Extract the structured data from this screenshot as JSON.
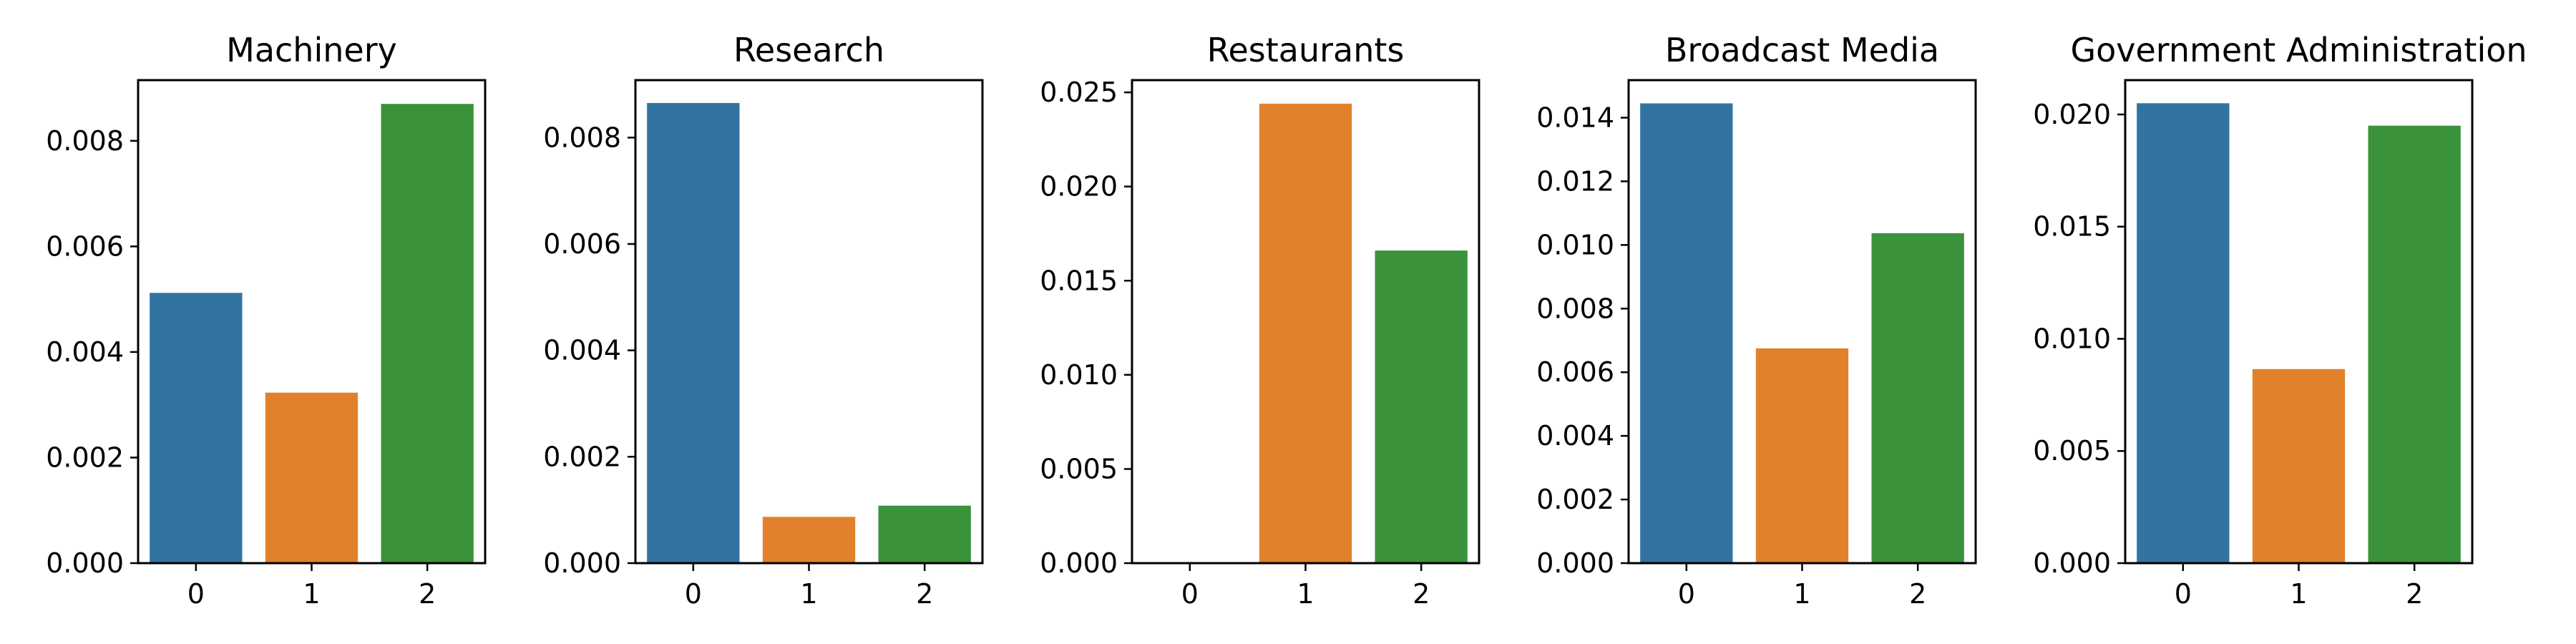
{
  "chart_data": [
    {
      "type": "bar",
      "title": "Machinery",
      "categories": [
        "0",
        "1",
        "2"
      ],
      "values": [
        0.00512,
        0.00323,
        0.0087
      ],
      "ylim": [
        0,
        0.00915
      ],
      "yticks": [
        "0.000",
        "0.002",
        "0.004",
        "0.006",
        "0.008"
      ],
      "ytick_values": [
        0,
        0.002,
        0.004,
        0.006,
        0.008
      ],
      "colors": [
        "#3274a1",
        "#e1812c",
        "#3a923a"
      ],
      "grid": false
    },
    {
      "type": "bar",
      "title": "Research",
      "categories": [
        "0",
        "1",
        "2"
      ],
      "values": [
        0.00865,
        0.00087,
        0.00108
      ],
      "ylim": [
        0,
        0.00908
      ],
      "yticks": [
        "0.000",
        "0.002",
        "0.004",
        "0.006",
        "0.008"
      ],
      "ytick_values": [
        0,
        0.002,
        0.004,
        0.006,
        0.008
      ],
      "colors": [
        "#3274a1",
        "#e1812c",
        "#3a923a"
      ],
      "grid": false
    },
    {
      "type": "bar",
      "title": "Restaurants",
      "categories": [
        "0",
        "1",
        "2"
      ],
      "values": [
        0.0,
        0.0244,
        0.0166
      ],
      "ylim": [
        0,
        0.02565
      ],
      "yticks": [
        "0.000",
        "0.005",
        "0.010",
        "0.015",
        "0.020",
        "0.025"
      ],
      "ytick_values": [
        0,
        0.005,
        0.01,
        0.015,
        0.02,
        0.025
      ],
      "colors": [
        "#3274a1",
        "#e1812c",
        "#3a923a"
      ],
      "grid": false
    },
    {
      "type": "bar",
      "title": "Broadcast Media",
      "categories": [
        "0",
        "1",
        "2"
      ],
      "values": [
        0.01445,
        0.00675,
        0.01037
      ],
      "ylim": [
        0,
        0.01518
      ],
      "yticks": [
        "0.000",
        "0.002",
        "0.004",
        "0.006",
        "0.008",
        "0.010",
        "0.012",
        "0.014"
      ],
      "ytick_values": [
        0,
        0.002,
        0.004,
        0.006,
        0.008,
        0.01,
        0.012,
        0.014
      ],
      "colors": [
        "#3274a1",
        "#e1812c",
        "#3a923a"
      ],
      "grid": false
    },
    {
      "type": "bar",
      "title": "Government Administration",
      "categories": [
        "0",
        "1",
        "2"
      ],
      "values": [
        0.0205,
        0.00865,
        0.0195
      ],
      "ylim": [
        0,
        0.02153
      ],
      "yticks": [
        "0.000",
        "0.005",
        "0.010",
        "0.015",
        "0.020"
      ],
      "ytick_values": [
        0,
        0.005,
        0.01,
        0.015,
        0.02
      ],
      "colors": [
        "#3274a1",
        "#e1812c",
        "#3a923a"
      ],
      "grid": false
    }
  ]
}
